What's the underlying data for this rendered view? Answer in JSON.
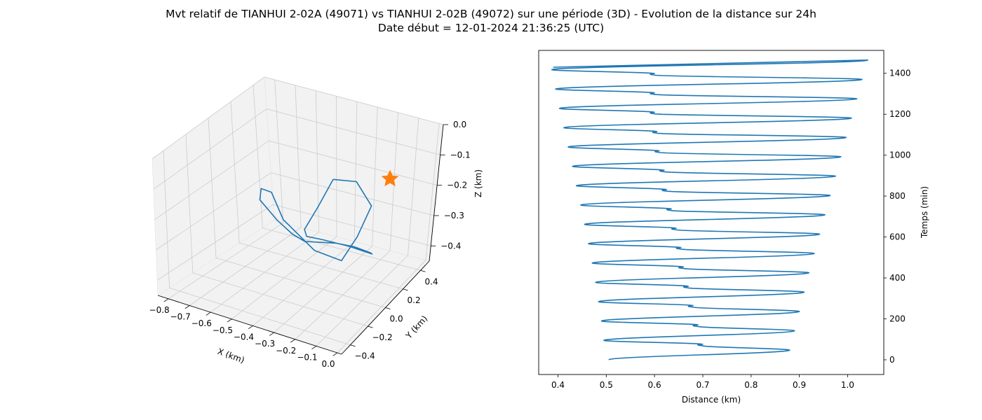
{
  "figure": {
    "title_line1": "Mvt relatif de TIANHUI 2-02A (49071) vs TIANHUI 2-02B (49072) sur une période (3D) - Evolution de la distance sur 24h",
    "title_line2": "Date début = 12-01-2024 21:36:25 (UTC)"
  },
  "colors": {
    "series": "#1f77b4",
    "marker": "#ff7f0e",
    "pane": "#f2f2f2",
    "grid": "#cccccc"
  },
  "chart_data": [
    {
      "type": "line",
      "projection": "3d",
      "xlabel": "X (km)",
      "ylabel": "Y (km)",
      "zlabel": "Z (km)",
      "x_ticks": [
        "−0.8",
        "−0.7",
        "−0.6",
        "−0.5",
        "−0.4",
        "−0.3",
        "−0.2",
        "−0.1",
        "0.0"
      ],
      "y_ticks": [
        "−0.4",
        "−0.2",
        "0.0",
        "0.2",
        "0.4"
      ],
      "z_ticks": [
        "−0.4",
        "−0.3",
        "−0.2",
        "−0.1",
        "0.0"
      ],
      "xlim": [
        -0.85,
        0.02
      ],
      "ylim": [
        -0.5,
        0.5
      ],
      "zlim": [
        -0.45,
        0.0
      ],
      "grid": true,
      "series": [
        {
          "x": [
            -0.33,
            -0.23,
            -0.14,
            -0.14,
            -0.18,
            -0.33,
            -0.52,
            -0.6,
            -0.62,
            -0.6,
            -0.52,
            -0.45,
            -0.42,
            -0.33,
            -0.3,
            -0.28,
            -0.33,
            -0.41,
            -0.45,
            -0.44,
            -0.42,
            -0.38,
            -0.33
          ],
          "y": [
            0.1,
            0.12,
            0.08,
            -0.05,
            -0.12,
            -0.08,
            0.0,
            0.05,
            0.0,
            -0.05,
            -0.05,
            -0.05,
            0.0,
            0.1,
            0.2,
            0.3,
            0.4,
            0.35,
            0.2,
            0.05,
            0.0,
            0.05,
            0.1
          ],
          "z": [
            -0.1,
            -0.09,
            -0.14,
            -0.21,
            -0.28,
            -0.29,
            -0.25,
            -0.19,
            -0.17,
            -0.19,
            -0.24,
            -0.27,
            -0.3,
            -0.31,
            -0.34,
            -0.38,
            -0.42,
            -0.4,
            -0.35,
            -0.3,
            -0.26,
            -0.19,
            -0.1
          ]
        }
      ],
      "markers": [
        {
          "shape": "star",
          "x": 0.0,
          "y": 0.0,
          "z": 0.0
        }
      ]
    },
    {
      "type": "line",
      "xlabel": "Distance (km)",
      "ylabel": "Temps (min)",
      "x_ticks": [
        "0.4",
        "0.5",
        "0.6",
        "0.7",
        "0.8",
        "0.9",
        "1.0"
      ],
      "y_ticks": [
        "0",
        "200",
        "400",
        "600",
        "800",
        "1000",
        "1200",
        "1400"
      ],
      "xlim": [
        0.36,
        1.075
      ],
      "ylim": [
        -72,
        1512
      ],
      "grid": false,
      "series": [
        {
          "troughs": [
            0.505,
            0.495,
            0.49,
            0.484,
            0.478,
            0.471,
            0.463,
            0.455,
            0.447,
            0.438,
            0.43,
            0.421,
            0.412,
            0.403,
            0.395,
            0.387
          ],
          "peaks": [
            0.88,
            0.89,
            0.9,
            0.91,
            0.92,
            0.931,
            0.942,
            0.953,
            0.964,
            0.975,
            0.986,
            0.997,
            1.008,
            1.019,
            1.03,
            1.042
          ],
          "mid": [
            0.7,
            0.69,
            0.68,
            0.67,
            0.66,
            0.655,
            0.645,
            0.635,
            0.625,
            0.62,
            0.61,
            0.605,
            0.6,
            0.6,
            0.6
          ],
          "cycle_min": 94.5,
          "t_end": 1430
        }
      ]
    }
  ]
}
